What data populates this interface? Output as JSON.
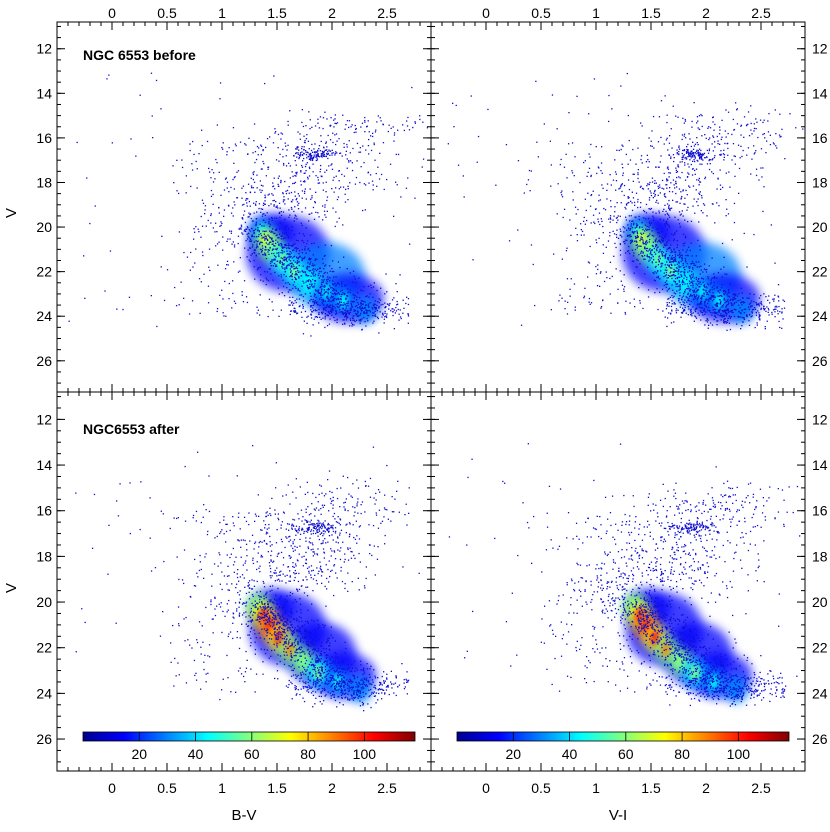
{
  "chart_data": {
    "type": "scatter",
    "description_kind": "Color-magnitude diagrams (Hess density plots)",
    "x_ticks": [
      0,
      0.5,
      1,
      1.5,
      2,
      2.5
    ],
    "x_tick_labels": [
      "0",
      "0.5",
      "1",
      "1.5",
      "2",
      "2.5"
    ],
    "y_ticks": [
      12,
      14,
      16,
      18,
      20,
      22,
      24,
      26
    ],
    "y_tick_labels": [
      "12",
      "14",
      "16",
      "18",
      "20",
      "22",
      "24",
      "26"
    ],
    "xlim": [
      -0.5,
      2.9
    ],
    "ylim": [
      27.4,
      10.8
    ],
    "x_titles": [
      "B-V",
      "V-I"
    ],
    "y_title": "V",
    "panels": [
      {
        "id": "top-left",
        "label": "NGC 6553 before",
        "xlabel": "B-V",
        "ylabel": "V",
        "colorbar": false
      },
      {
        "id": "top-right",
        "label": "",
        "xlabel": "V-I",
        "ylabel": "V",
        "colorbar": false
      },
      {
        "id": "bottom-left",
        "label": "NGC6553 after",
        "xlabel": "B-V",
        "ylabel": "V",
        "colorbar": true
      },
      {
        "id": "bottom-right",
        "label": "",
        "xlabel": "V-I",
        "ylabel": "V",
        "colorbar": true
      }
    ],
    "density_features": {
      "main_sequence_turnoff": {
        "color": [
          1.3,
          1.6
        ],
        "V": [
          20.0,
          21.0
        ]
      },
      "lower_main_sequence": {
        "color": [
          1.7,
          2.5
        ],
        "V": [
          22.0,
          24.0
        ]
      },
      "red_clump": {
        "color": 1.85,
        "V": 16.7
      },
      "faint_limit_V": 24.3
    },
    "colorbar": {
      "min": 0,
      "max": 118,
      "tick_values": [
        20,
        40,
        60,
        80,
        100
      ],
      "tick_labels": [
        "20",
        "40",
        "60",
        "80",
        "100"
      ],
      "colormap": "jet",
      "stops": [
        "#00008f",
        "#0000ff",
        "#0080ff",
        "#00ffff",
        "#80ff80",
        "#ffff00",
        "#ff8000",
        "#ff0000",
        "#800000"
      ]
    }
  }
}
